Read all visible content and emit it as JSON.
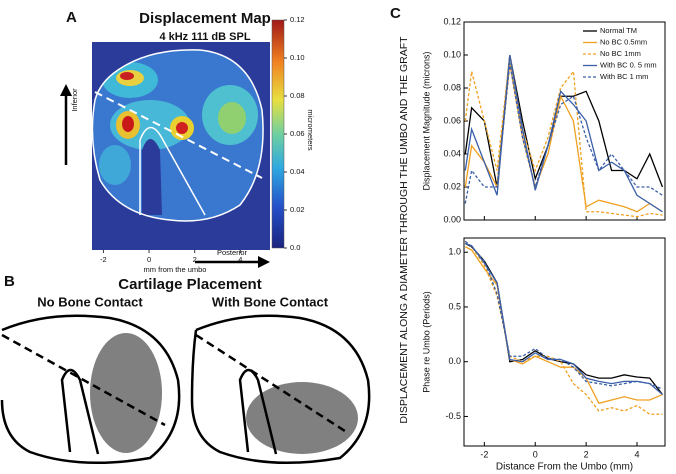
{
  "panel_a": {
    "label": "A",
    "title": "Displacement Map",
    "subtitle": "4 kHz 111 dB SPL",
    "colorbar_label": "micrometers",
    "colorbar_lim": [
      0,
      0.12
    ],
    "colorbar_ticks": [
      {
        "value": 0,
        "label": "0.0"
      },
      0.02,
      0.04,
      0.06,
      0.08,
      {
        "value": 0.1,
        "label": "0.10"
      },
      0.12
    ],
    "xticks": [
      -2,
      0,
      2,
      4
    ],
    "xlim": [
      -2.5,
      5.3
    ],
    "x_label": "mm from the umbo",
    "arrow_up": "Inferior",
    "arrow_right": "Posterior"
  },
  "panel_b": {
    "label": "B",
    "title": "Cartilage Placement",
    "left": "No Bone Contact",
    "right": "With Bone Contact"
  },
  "panel_c": {
    "label": "C",
    "shared_y_label": "DISPLACEMENT ALONG A DIAMETER THROUGH THE UMBO AND THE GRAFT"
  },
  "chart_data": [
    {
      "type": "line",
      "y_label": "Displacement Magnitude (microns)",
      "x": [
        -2.75,
        -2.5,
        -2,
        -1.5,
        -1,
        -0.5,
        0,
        0.5,
        1,
        1.5,
        2,
        2.5,
        3,
        3.5,
        4,
        4.5,
        5
      ],
      "xlim": [
        -2.8,
        5.1
      ],
      "ylim": [
        0,
        0.12
      ],
      "yticks": [
        {
          "value": 0,
          "label": "0.00"
        },
        0.02,
        0.04,
        0.06,
        0.08,
        {
          "value": 0.1,
          "label": "0.10"
        },
        0.12
      ],
      "legend": "upper right",
      "series": [
        {
          "name": "Normal TM",
          "color": "#000000",
          "dash": false,
          "values": [
            0.04,
            0.068,
            0.06,
            0.02,
            0.1,
            0.06,
            0.025,
            0.045,
            0.075,
            0.075,
            0.078,
            0.06,
            0.03,
            0.03,
            0.025,
            0.04,
            0.02
          ]
        },
        {
          "name": "No BC 0.5mm",
          "color": "#f0a020",
          "dash": false,
          "values": [
            0.02,
            0.045,
            0.035,
            0.02,
            0.095,
            0.05,
            0.02,
            0.04,
            0.075,
            0.06,
            0.008,
            0.012,
            0.01,
            0.008,
            0.005,
            0.01,
            0.005
          ]
        },
        {
          "name": "No BC 1mm",
          "color": "#f0a020",
          "dash": true,
          "values": [
            0.06,
            0.09,
            0.06,
            0.03,
            0.1,
            0.055,
            0.03,
            0.05,
            0.08,
            0.09,
            0.005,
            0.005,
            0.004,
            0.003,
            0.002,
            0.004,
            0.003
          ]
        },
        {
          "name": "With BC 0. 5 mm",
          "color": "#3a5fa8",
          "dash": false,
          "values": [
            0.03,
            0.055,
            0.035,
            0.015,
            0.1,
            0.055,
            0.018,
            0.045,
            0.078,
            0.07,
            0.06,
            0.03,
            0.035,
            0.03,
            0.015,
            0.01,
            0.005
          ]
        },
        {
          "name": "With BC 1 mm",
          "color": "#3a5fa8",
          "dash": true,
          "values": [
            0.01,
            0.03,
            0.02,
            0.02,
            0.095,
            0.05,
            0.02,
            0.045,
            0.07,
            0.075,
            0.05,
            0.03,
            0.04,
            0.03,
            0.02,
            0.02,
            0.015
          ]
        }
      ]
    },
    {
      "type": "line",
      "y_label": "Phase re Umbo (Periods)",
      "x_label": "Distance From the Umbo (mm)",
      "x": [
        -2.75,
        -2.5,
        -2,
        -1.5,
        -1,
        -0.5,
        0,
        0.5,
        1,
        1.5,
        2,
        2.5,
        3,
        3.5,
        4,
        4.5,
        5
      ],
      "xlim": [
        -2.8,
        5.1
      ],
      "ylim": [
        -0.77,
        1.13
      ],
      "xticks": [
        -2,
        0,
        2,
        4
      ],
      "yticks": [
        {
          "value": 1,
          "label": "1.0"
        },
        0.5,
        {
          "value": 0,
          "label": "0.0"
        },
        -0.5
      ],
      "series": [
        {
          "color": "#000000",
          "dash": false,
          "values": [
            1.08,
            1.05,
            0.92,
            0.72,
            0.0,
            0.02,
            0.1,
            0.03,
            0.0,
            -0.02,
            -0.12,
            -0.15,
            -0.15,
            -0.12,
            -0.14,
            -0.15,
            -0.3
          ]
        },
        {
          "color": "#f0a020",
          "dash": false,
          "values": [
            1.05,
            1.02,
            0.85,
            0.7,
            0.02,
            -0.02,
            0.05,
            0.0,
            -0.05,
            -0.05,
            -0.15,
            -0.38,
            -0.35,
            -0.32,
            -0.35,
            -0.35,
            -0.3
          ]
        },
        {
          "color": "#f0a020",
          "dash": true,
          "values": [
            1.1,
            1.05,
            0.88,
            0.6,
            0.05,
            0.0,
            0.05,
            0.05,
            0.0,
            -0.2,
            -0.3,
            -0.45,
            -0.42,
            -0.45,
            -0.4,
            -0.48,
            -0.48
          ]
        },
        {
          "color": "#3a5fa8",
          "dash": false,
          "values": [
            1.08,
            1.06,
            0.9,
            0.72,
            0.02,
            0.0,
            0.08,
            0.02,
            0.02,
            -0.02,
            -0.15,
            -0.18,
            -0.2,
            -0.18,
            -0.18,
            -0.2,
            -0.3
          ]
        },
        {
          "color": "#3a5fa8",
          "dash": true,
          "values": [
            1.1,
            1.05,
            0.92,
            0.62,
            0.05,
            0.05,
            0.12,
            0.03,
            0.02,
            -0.05,
            -0.18,
            -0.2,
            -0.22,
            -0.2,
            -0.18,
            -0.2,
            -0.25
          ]
        }
      ]
    }
  ]
}
